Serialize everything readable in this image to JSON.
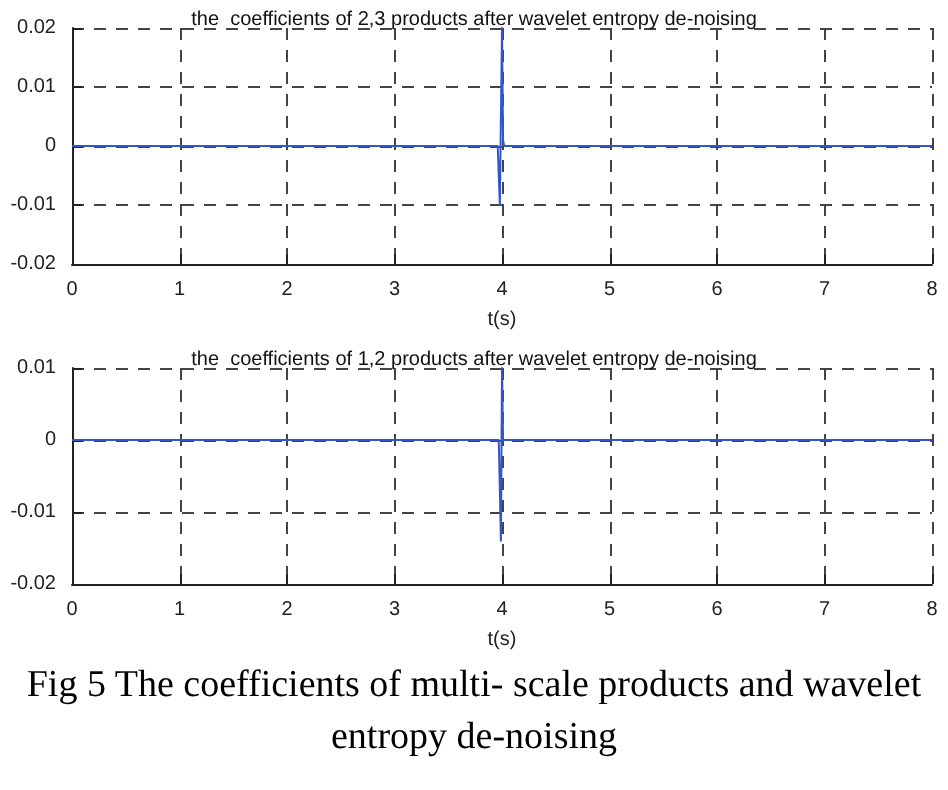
{
  "chart_data": [
    {
      "type": "line",
      "title": "the  coefficients of 2,3 products after wavelet entropy de-noising",
      "xlabel": "t(s)",
      "x": [
        0,
        3.96,
        3.98,
        3.99,
        4.0,
        4.01,
        4.02,
        8
      ],
      "series": [
        {
          "color": "#3355cc",
          "values": [
            0,
            0,
            -0.01,
            0.005,
            0.02,
            0.001,
            0,
            0
          ]
        }
      ],
      "xlim": [
        0,
        8
      ],
      "xticks": [
        0,
        1,
        2,
        3,
        4,
        5,
        6,
        7,
        8
      ],
      "ylim": [
        -0.02,
        0.02
      ],
      "yticks": [
        -0.02,
        -0.01,
        0,
        0.01,
        0.02
      ],
      "grid": true,
      "line_style": "solid",
      "marker": "none"
    },
    {
      "type": "line",
      "title": "the  coefficients of 1,2 products after wavelet entropy de-noising",
      "xlabel": "t(s)",
      "x": [
        0,
        3.97,
        3.99,
        4.0,
        4.01,
        8
      ],
      "series": [
        {
          "color": "#3355cc",
          "values": [
            0,
            0,
            -0.014,
            0.01,
            0,
            0
          ]
        }
      ],
      "xlim": [
        0,
        8
      ],
      "xticks": [
        0,
        1,
        2,
        3,
        4,
        5,
        6,
        7,
        8
      ],
      "ylim": [
        -0.02,
        0.01
      ],
      "yticks": [
        -0.02,
        -0.01,
        0,
        0.01
      ],
      "grid": true,
      "line_style": "solid",
      "marker": "none",
      "annotations": [
        "Fig 5 The coefficients of multi- scale products and wavelet entropy de-noising"
      ]
    }
  ]
}
